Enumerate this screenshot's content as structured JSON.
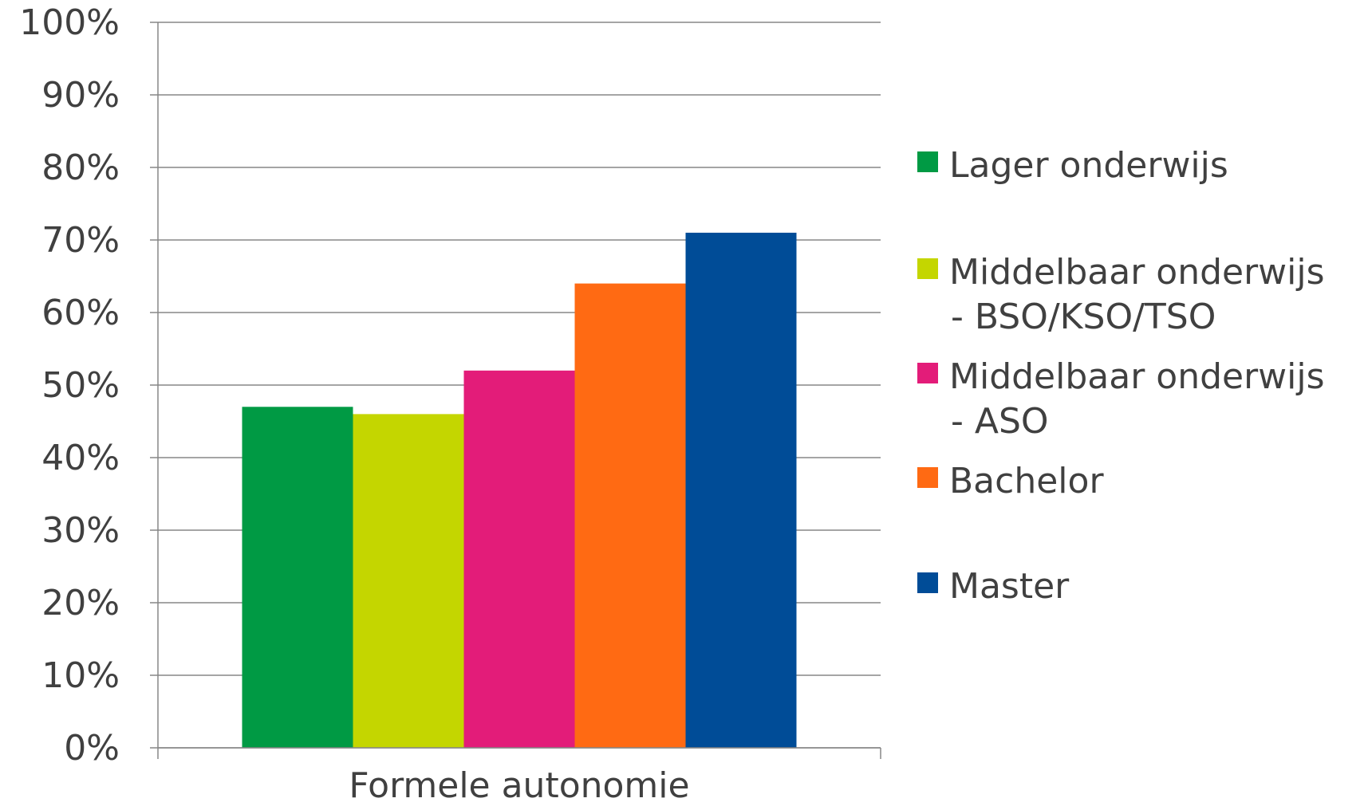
{
  "chart_data": {
    "type": "bar",
    "categories": [
      "Formele autonomie"
    ],
    "series": [
      {
        "name": "Lager onderwijs",
        "values": [
          47
        ],
        "color": "#009A44"
      },
      {
        "name": "Middelbaar onderwijs - BSO/KSO/TSO",
        "values": [
          46
        ],
        "color": "#C4D600"
      },
      {
        "name": "Middelbaar onderwijs - ASO",
        "values": [
          52
        ],
        "color": "#E31C79"
      },
      {
        "name": "Bachelor",
        "values": [
          64
        ],
        "color": "#FF6A13"
      },
      {
        "name": "Master",
        "values": [
          71
        ],
        "color": "#004C97"
      }
    ],
    "ylim": [
      0,
      100
    ],
    "yticks": [
      "0%",
      "10%",
      "20%",
      "30%",
      "40%",
      "50%",
      "60%",
      "70%",
      "80%",
      "90%",
      "100%"
    ],
    "grid": true,
    "legend": "right",
    "legend_lines": [
      [
        "Lager onderwijs"
      ],
      [
        "Middelbaar onderwijs",
        "- BSO/KSO/TSO"
      ],
      [
        "Middelbaar onderwijs",
        "- ASO"
      ],
      [
        "Bachelor"
      ],
      [
        "Master"
      ]
    ],
    "gridline_color": "#878787",
    "axis_color": "#878787"
  }
}
